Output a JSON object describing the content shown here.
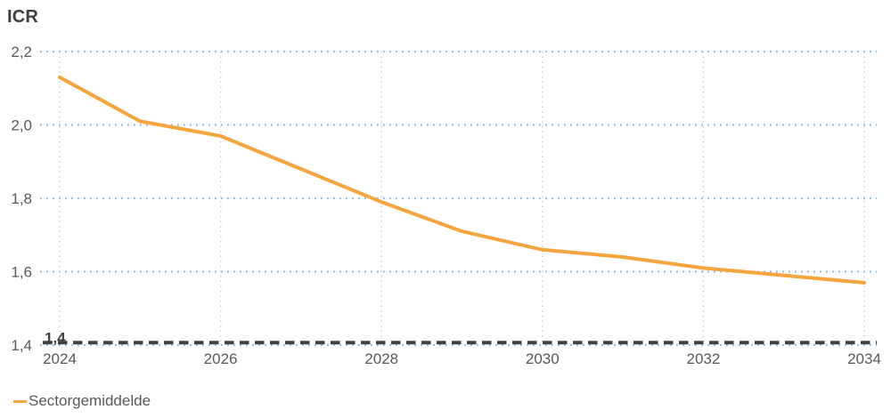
{
  "title": "ICR",
  "colors": {
    "series_orange": "#F5A53F",
    "grid_blue": "#8DBADF",
    "grid_gray": "#C9C9C9",
    "reference_dark": "#404040",
    "axis_text": "#595959",
    "title_text": "#3F3F3F",
    "background": "#FFFFFF"
  },
  "chart_data": {
    "type": "line",
    "title": "ICR",
    "x": [
      2024,
      2025,
      2026,
      2027,
      2028,
      2029,
      2030,
      2031,
      2032,
      2033,
      2034
    ],
    "series": [
      {
        "name": "Sectorgemiddelde",
        "color": "#F5A53F",
        "values": [
          2.13,
          2.01,
          1.97,
          1.88,
          1.79,
          1.71,
          1.66,
          1.64,
          1.61,
          1.59,
          1.57
        ]
      }
    ],
    "xlim": [
      2024,
      2034
    ],
    "ylim": [
      1.4,
      2.2
    ],
    "xticks": {
      "values": [
        2024,
        2026,
        2028,
        2030,
        2032,
        2034
      ],
      "labels": [
        "2024",
        "2026",
        "2028",
        "2030",
        "2032",
        "2034"
      ]
    },
    "yticks": {
      "values": [
        2.2,
        2.0,
        1.8,
        1.6,
        1.4
      ],
      "labels": [
        "2,2",
        "2,0",
        "1,8",
        "1,6",
        "1,4"
      ]
    },
    "grid": {
      "horizontal": "dotted",
      "vertical": "dotted"
    },
    "reference_line": {
      "value": 1.4,
      "label": "1,4",
      "style": "dashed"
    },
    "legend_position": "bottom-left",
    "legend_entries": [
      "Sectorgemiddelde"
    ]
  },
  "legend": {
    "label": "Sectorgemiddelde"
  }
}
